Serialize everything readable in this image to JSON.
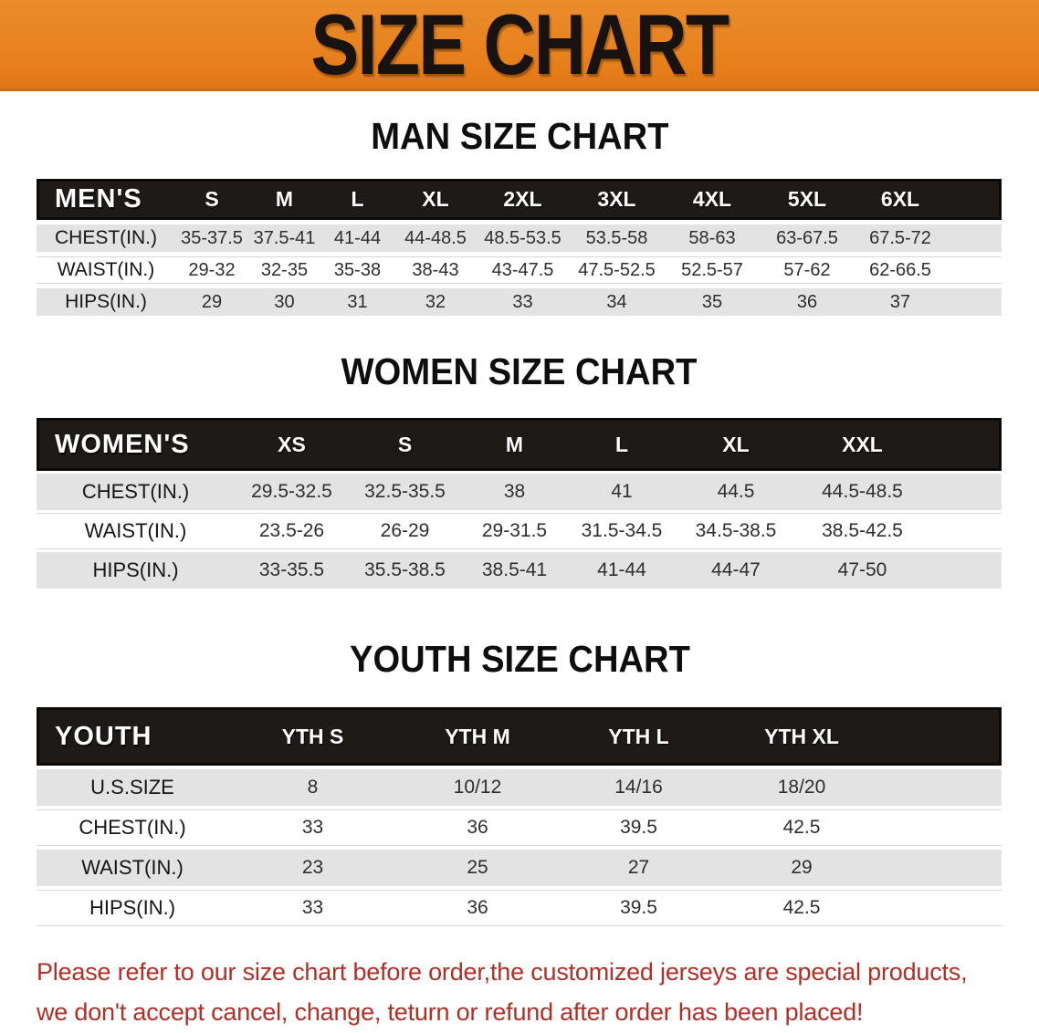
{
  "banner": {
    "title": "SIZE CHART"
  },
  "colors": {
    "banner_orange": "#e8821e",
    "banner_bottom_edge": "#c96c10",
    "table_header_black": "#1e1a18",
    "row_gray": "#e3e3e4",
    "disclaimer_red": "#b02f26"
  },
  "men": {
    "heading": "MAN SIZE CHART",
    "corner": "MEN'S",
    "sizes": [
      "S",
      "M",
      "L",
      "XL",
      "2XL",
      "3XL",
      "4XL",
      "5XL",
      "6XL"
    ],
    "rows": [
      {
        "label": "CHEST(IN.)",
        "values": [
          "35-37.5",
          "37.5-41",
          "41-44",
          "44-48.5",
          "48.5-53.5",
          "53.5-58",
          "58-63",
          "63-67.5",
          "67.5-72"
        ]
      },
      {
        "label": "WAIST(IN.)",
        "values": [
          "29-32",
          "32-35",
          "35-38",
          "38-43",
          "43-47.5",
          "47.5-52.5",
          "52.5-57",
          "57-62",
          "62-66.5"
        ]
      },
      {
        "label": "HIPS(IN.)",
        "values": [
          "29",
          "30",
          "31",
          "32",
          "33",
          "34",
          "35",
          "36",
          "37"
        ]
      }
    ]
  },
  "women": {
    "heading": "WOMEN SIZE CHART",
    "corner": "WOMEN'S",
    "sizes": [
      "XS",
      "S",
      "M",
      "L",
      "XL",
      "XXL"
    ],
    "rows": [
      {
        "label": "CHEST(IN.)",
        "values": [
          "29.5-32.5",
          "32.5-35.5",
          "38",
          "41",
          "44.5",
          "44.5-48.5"
        ]
      },
      {
        "label": "WAIST(IN.)",
        "values": [
          "23.5-26",
          "26-29",
          "29-31.5",
          "31.5-34.5",
          "34.5-38.5",
          "38.5-42.5"
        ]
      },
      {
        "label": "HIPS(IN.)",
        "values": [
          "33-35.5",
          "35.5-38.5",
          "38.5-41",
          "41-44",
          "44-47",
          "47-50"
        ]
      }
    ]
  },
  "youth": {
    "heading": "YOUTH SIZE CHART",
    "corner": "YOUTH",
    "sizes": [
      "YTH S",
      "YTH M",
      "YTH L",
      "YTH XL"
    ],
    "rows": [
      {
        "label": "U.S.SIZE",
        "values": [
          "8",
          "10/12",
          "14/16",
          "18/20"
        ]
      },
      {
        "label": "CHEST(IN.)",
        "values": [
          "33",
          "36",
          "39.5",
          "42.5"
        ]
      },
      {
        "label": "WAIST(IN.)",
        "values": [
          "23",
          "25",
          "27",
          "29"
        ]
      },
      {
        "label": "HIPS(IN.)",
        "values": [
          "33",
          "36",
          "39.5",
          "42.5"
        ]
      }
    ]
  },
  "disclaimer": {
    "line1": "Please refer to our size chart before order,the customized jerseys are special products,",
    "line2": "we don't accept cancel, change, teturn or refund after order has been placed!"
  }
}
